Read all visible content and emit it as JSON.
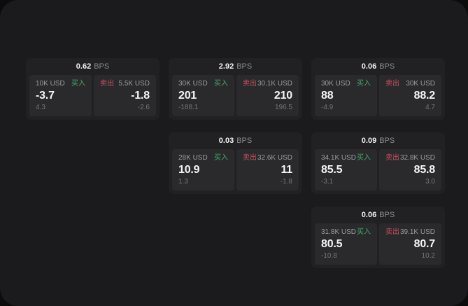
{
  "labels": {
    "bps_unit": "BPS",
    "buy": "买入",
    "sell": "卖出"
  },
  "colors": {
    "background_outer": "#0c0c0c",
    "window_background": "#1b1b1d",
    "card_background": "#212123",
    "panel_background": "#2a2a2d",
    "buy_green": "#43a96a",
    "sell_red": "#c94f5d",
    "value_white": "#f5f5f6",
    "label_gray": "#9b9b9d"
  },
  "cards": [
    {
      "bps": "0.62",
      "buy": {
        "amount": "10K USD",
        "value": "-3.7",
        "delta": "4.3"
      },
      "sell": {
        "amount": "5.5K USD",
        "value": "-1.8",
        "delta": "-2.6"
      }
    },
    {
      "bps": "2.92",
      "buy": {
        "amount": "30K USD",
        "value": "201",
        "delta": "-188.1"
      },
      "sell": {
        "amount": "30.1K USD",
        "value": "210",
        "delta": "196.5"
      }
    },
    {
      "bps": "0.06",
      "buy": {
        "amount": "30K USD",
        "value": "88",
        "delta": "-4.9"
      },
      "sell": {
        "amount": "30K USD",
        "value": "88.2",
        "delta": "4.7"
      }
    },
    {
      "bps": "0.03",
      "buy": {
        "amount": "28K USD",
        "value": "10.9",
        "delta": "1.3"
      },
      "sell": {
        "amount": "32.6K USD",
        "value": "11",
        "delta": "-1.8"
      }
    },
    {
      "bps": "0.09",
      "buy": {
        "amount": "34.1K USD",
        "value": "85.5",
        "delta": "-3.1"
      },
      "sell": {
        "amount": "32.8K USD",
        "value": "85.8",
        "delta": "3.0"
      }
    },
    {
      "bps": "0.06",
      "buy": {
        "amount": "31.8K USD",
        "value": "80.5",
        "delta": "-10.8"
      },
      "sell": {
        "amount": "39.1K USD",
        "value": "80.7",
        "delta": "10.2"
      }
    }
  ]
}
